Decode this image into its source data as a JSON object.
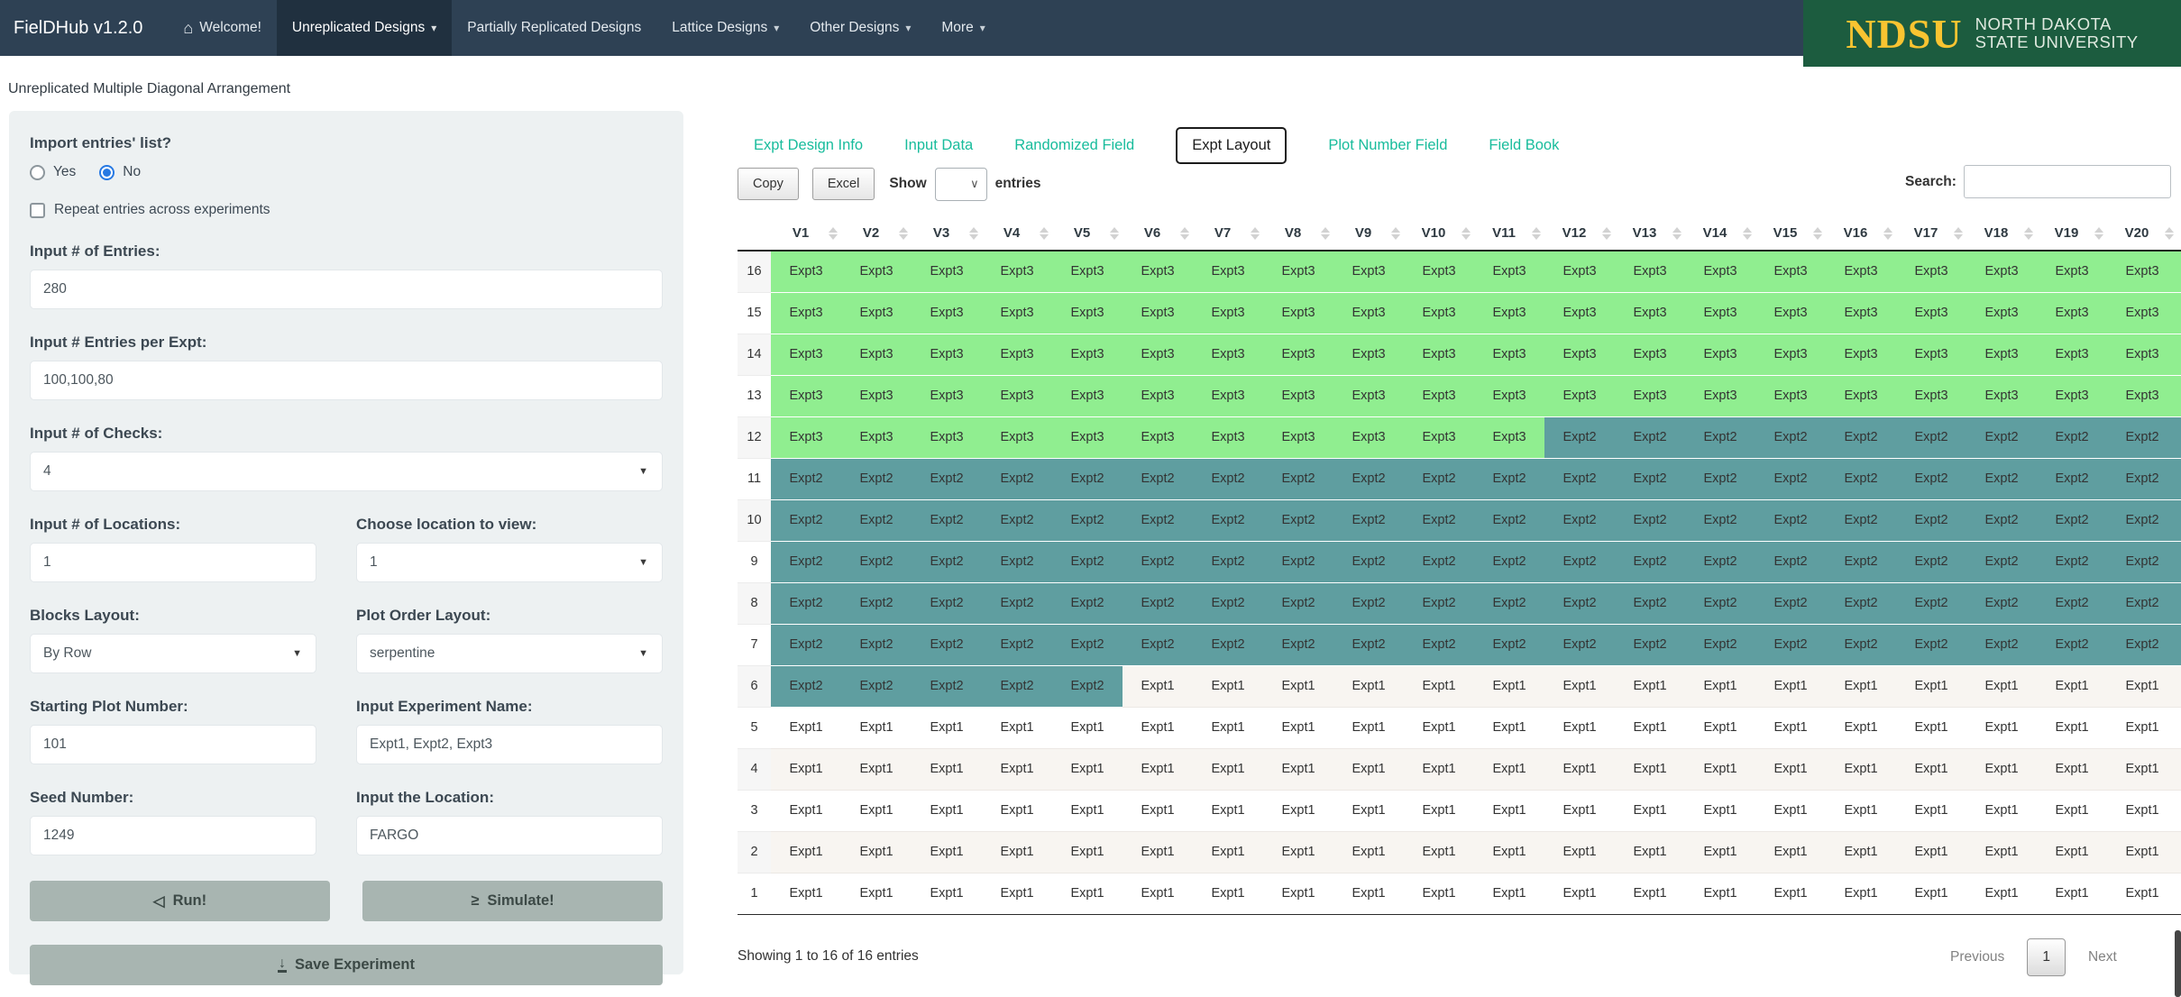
{
  "navbar": {
    "brand": "FielDHub v1.2.0",
    "items": [
      {
        "label": "Welcome!",
        "icon": "home-icon",
        "active": false,
        "caret": false
      },
      {
        "label": "Unreplicated Designs",
        "active": true,
        "caret": true
      },
      {
        "label": "Partially Replicated Designs",
        "active": false,
        "caret": false
      },
      {
        "label": "Lattice Designs",
        "active": false,
        "caret": true
      },
      {
        "label": "Other Designs",
        "active": false,
        "caret": true
      },
      {
        "label": "More",
        "active": false,
        "caret": true
      }
    ],
    "logo": {
      "acronym": "NDSU",
      "line1": "NORTH DAKOTA",
      "line2": "STATE UNIVERSITY"
    }
  },
  "page_title": "Unreplicated Multiple Diagonal Arrangement",
  "sidebar": {
    "import_label": "Import entries' list?",
    "radio_yes": "Yes",
    "radio_no": "No",
    "radio_selected": "No",
    "repeat_label": "Repeat entries across experiments",
    "repeat_checked": false,
    "entries_label": "Input # of Entries:",
    "entries_value": "280",
    "entries_per_expt_label": "Input # Entries per Expt:",
    "entries_per_expt_value": "100,100,80",
    "checks_label": "Input # of Checks:",
    "checks_value": "4",
    "locations_label": "Input # of Locations:",
    "locations_value": "1",
    "location_view_label": "Choose location to view:",
    "location_view_value": "1",
    "blocks_layout_label": "Blocks Layout:",
    "blocks_layout_value": "By Row",
    "plot_order_label": "Plot Order Layout:",
    "plot_order_value": "serpentine",
    "starting_plot_label": "Starting Plot Number:",
    "starting_plot_value": "101",
    "experiment_name_label": "Input Experiment Name:",
    "experiment_name_value": "Expt1, Expt2, Expt3",
    "seed_label": "Seed Number:",
    "seed_value": "1249",
    "location_input_label": "Input the Location:",
    "location_input_value": "FARGO",
    "run_button": "Run!",
    "simulate_button": "Simulate!",
    "save_button": "Save Experiment"
  },
  "main": {
    "tabs": [
      {
        "label": "Expt Design Info",
        "active": false
      },
      {
        "label": "Input Data",
        "active": false
      },
      {
        "label": "Randomized Field",
        "active": false
      },
      {
        "label": "Expt Layout",
        "active": true
      },
      {
        "label": "Plot Number Field",
        "active": false
      },
      {
        "label": "Field Book",
        "active": false
      }
    ],
    "toolbar": {
      "copy": "Copy",
      "excel": "Excel",
      "show_label": "Show",
      "show_value": "",
      "entries_label": "entries",
      "search_label": "Search:",
      "search_value": ""
    },
    "table": {
      "columns": [
        "V1",
        "V2",
        "V3",
        "V4",
        "V5",
        "V6",
        "V7",
        "V8",
        "V9",
        "V10",
        "V11",
        "V12",
        "V13",
        "V14",
        "V15",
        "V16",
        "V17",
        "V18",
        "V19",
        "V20"
      ],
      "rows": [
        {
          "row": "16",
          "values": [
            "Expt3",
            "Expt3",
            "Expt3",
            "Expt3",
            "Expt3",
            "Expt3",
            "Expt3",
            "Expt3",
            "Expt3",
            "Expt3",
            "Expt3",
            "Expt3",
            "Expt3",
            "Expt3",
            "Expt3",
            "Expt3",
            "Expt3",
            "Expt3",
            "Expt3",
            "Expt3"
          ]
        },
        {
          "row": "15",
          "values": [
            "Expt3",
            "Expt3",
            "Expt3",
            "Expt3",
            "Expt3",
            "Expt3",
            "Expt3",
            "Expt3",
            "Expt3",
            "Expt3",
            "Expt3",
            "Expt3",
            "Expt3",
            "Expt3",
            "Expt3",
            "Expt3",
            "Expt3",
            "Expt3",
            "Expt3",
            "Expt3"
          ]
        },
        {
          "row": "14",
          "values": [
            "Expt3",
            "Expt3",
            "Expt3",
            "Expt3",
            "Expt3",
            "Expt3",
            "Expt3",
            "Expt3",
            "Expt3",
            "Expt3",
            "Expt3",
            "Expt3",
            "Expt3",
            "Expt3",
            "Expt3",
            "Expt3",
            "Expt3",
            "Expt3",
            "Expt3",
            "Expt3"
          ]
        },
        {
          "row": "13",
          "values": [
            "Expt3",
            "Expt3",
            "Expt3",
            "Expt3",
            "Expt3",
            "Expt3",
            "Expt3",
            "Expt3",
            "Expt3",
            "Expt3",
            "Expt3",
            "Expt3",
            "Expt3",
            "Expt3",
            "Expt3",
            "Expt3",
            "Expt3",
            "Expt3",
            "Expt3",
            "Expt3"
          ]
        },
        {
          "row": "12",
          "values": [
            "Expt3",
            "Expt3",
            "Expt3",
            "Expt3",
            "Expt3",
            "Expt3",
            "Expt3",
            "Expt3",
            "Expt3",
            "Expt3",
            "Expt3",
            "Expt2",
            "Expt2",
            "Expt2",
            "Expt2",
            "Expt2",
            "Expt2",
            "Expt2",
            "Expt2",
            "Expt2"
          ]
        },
        {
          "row": "11",
          "values": [
            "Expt2",
            "Expt2",
            "Expt2",
            "Expt2",
            "Expt2",
            "Expt2",
            "Expt2",
            "Expt2",
            "Expt2",
            "Expt2",
            "Expt2",
            "Expt2",
            "Expt2",
            "Expt2",
            "Expt2",
            "Expt2",
            "Expt2",
            "Expt2",
            "Expt2",
            "Expt2"
          ]
        },
        {
          "row": "10",
          "values": [
            "Expt2",
            "Expt2",
            "Expt2",
            "Expt2",
            "Expt2",
            "Expt2",
            "Expt2",
            "Expt2",
            "Expt2",
            "Expt2",
            "Expt2",
            "Expt2",
            "Expt2",
            "Expt2",
            "Expt2",
            "Expt2",
            "Expt2",
            "Expt2",
            "Expt2",
            "Expt2"
          ]
        },
        {
          "row": "9",
          "values": [
            "Expt2",
            "Expt2",
            "Expt2",
            "Expt2",
            "Expt2",
            "Expt2",
            "Expt2",
            "Expt2",
            "Expt2",
            "Expt2",
            "Expt2",
            "Expt2",
            "Expt2",
            "Expt2",
            "Expt2",
            "Expt2",
            "Expt2",
            "Expt2",
            "Expt2",
            "Expt2"
          ]
        },
        {
          "row": "8",
          "values": [
            "Expt2",
            "Expt2",
            "Expt2",
            "Expt2",
            "Expt2",
            "Expt2",
            "Expt2",
            "Expt2",
            "Expt2",
            "Expt2",
            "Expt2",
            "Expt2",
            "Expt2",
            "Expt2",
            "Expt2",
            "Expt2",
            "Expt2",
            "Expt2",
            "Expt2",
            "Expt2"
          ]
        },
        {
          "row": "7",
          "values": [
            "Expt2",
            "Expt2",
            "Expt2",
            "Expt2",
            "Expt2",
            "Expt2",
            "Expt2",
            "Expt2",
            "Expt2",
            "Expt2",
            "Expt2",
            "Expt2",
            "Expt2",
            "Expt2",
            "Expt2",
            "Expt2",
            "Expt2",
            "Expt2",
            "Expt2",
            "Expt2"
          ]
        },
        {
          "row": "6",
          "values": [
            "Expt2",
            "Expt2",
            "Expt2",
            "Expt2",
            "Expt2",
            "Expt1",
            "Expt1",
            "Expt1",
            "Expt1",
            "Expt1",
            "Expt1",
            "Expt1",
            "Expt1",
            "Expt1",
            "Expt1",
            "Expt1",
            "Expt1",
            "Expt1",
            "Expt1",
            "Expt1"
          ]
        },
        {
          "row": "5",
          "values": [
            "Expt1",
            "Expt1",
            "Expt1",
            "Expt1",
            "Expt1",
            "Expt1",
            "Expt1",
            "Expt1",
            "Expt1",
            "Expt1",
            "Expt1",
            "Expt1",
            "Expt1",
            "Expt1",
            "Expt1",
            "Expt1",
            "Expt1",
            "Expt1",
            "Expt1",
            "Expt1"
          ]
        },
        {
          "row": "4",
          "values": [
            "Expt1",
            "Expt1",
            "Expt1",
            "Expt1",
            "Expt1",
            "Expt1",
            "Expt1",
            "Expt1",
            "Expt1",
            "Expt1",
            "Expt1",
            "Expt1",
            "Expt1",
            "Expt1",
            "Expt1",
            "Expt1",
            "Expt1",
            "Expt1",
            "Expt1",
            "Expt1"
          ]
        },
        {
          "row": "3",
          "values": [
            "Expt1",
            "Expt1",
            "Expt1",
            "Expt1",
            "Expt1",
            "Expt1",
            "Expt1",
            "Expt1",
            "Expt1",
            "Expt1",
            "Expt1",
            "Expt1",
            "Expt1",
            "Expt1",
            "Expt1",
            "Expt1",
            "Expt1",
            "Expt1",
            "Expt1",
            "Expt1"
          ]
        },
        {
          "row": "2",
          "values": [
            "Expt1",
            "Expt1",
            "Expt1",
            "Expt1",
            "Expt1",
            "Expt1",
            "Expt1",
            "Expt1",
            "Expt1",
            "Expt1",
            "Expt1",
            "Expt1",
            "Expt1",
            "Expt1",
            "Expt1",
            "Expt1",
            "Expt1",
            "Expt1",
            "Expt1",
            "Expt1"
          ]
        },
        {
          "row": "1",
          "values": [
            "Expt1",
            "Expt1",
            "Expt1",
            "Expt1",
            "Expt1",
            "Expt1",
            "Expt1",
            "Expt1",
            "Expt1",
            "Expt1",
            "Expt1",
            "Expt1",
            "Expt1",
            "Expt1",
            "Expt1",
            "Expt1",
            "Expt1",
            "Expt1",
            "Expt1",
            "Expt1"
          ]
        }
      ]
    },
    "footer": {
      "showing": "Showing 1 to 16 of 16 entries",
      "previous": "Previous",
      "page": "1",
      "next": "Next"
    }
  },
  "colors": {
    "navbar_bg": "#2e4154",
    "navbar_active_bg": "#20303f",
    "ndsu_green": "#1c5c3f",
    "ndsu_yellow": "#f9c431",
    "tab_link": "#18bc9c",
    "expt1_cell": "#ffffff",
    "expt2_cell": "#5f9ea0",
    "expt3_cell": "#90ee90",
    "panel_bg": "#edf1f2",
    "button_bg": "#a8b5b1"
  }
}
